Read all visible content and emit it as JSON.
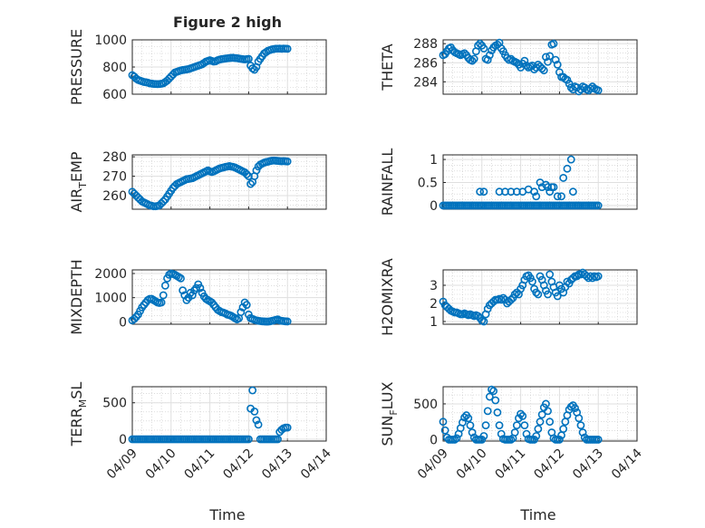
{
  "figure_title": "Figure 2 high",
  "colors": {
    "series": "#0072BD",
    "axes": "#262626",
    "grid": "#dfdfdf"
  },
  "x_axis": {
    "label": "Time",
    "ticks": [
      "04/09",
      "04/10",
      "04/11",
      "04/12",
      "04/13",
      "04/14"
    ],
    "range": [
      0,
      5
    ]
  },
  "chart_data": [
    {
      "type": "scatter",
      "position": "row1-left",
      "ylabel": "PRESSURE",
      "ylim": [
        600,
        1000
      ],
      "yticks": [
        600,
        800,
        1000
      ],
      "x": [
        0,
        0.05,
        0.1,
        0.15,
        0.2,
        0.25,
        0.3,
        0.35,
        0.4,
        0.45,
        0.5,
        0.55,
        0.6,
        0.65,
        0.7,
        0.75,
        0.8,
        0.85,
        0.9,
        0.95,
        1.0,
        1.05,
        1.1,
        1.15,
        1.2,
        1.25,
        1.3,
        1.35,
        1.4,
        1.45,
        1.5,
        1.55,
        1.6,
        1.65,
        1.7,
        1.75,
        1.8,
        1.85,
        1.9,
        1.95,
        2.0,
        2.05,
        2.1,
        2.15,
        2.2,
        2.25,
        2.3,
        2.35,
        2.4,
        2.45,
        2.5,
        2.55,
        2.6,
        2.65,
        2.7,
        2.75,
        2.8,
        2.85,
        2.9,
        2.95,
        3.0,
        3.05,
        3.1,
        3.15,
        3.2,
        3.25,
        3.3,
        3.35,
        3.4,
        3.45,
        3.5,
        3.55,
        3.6,
        3.65,
        3.7,
        3.75,
        3.8,
        3.85,
        3.9,
        3.95,
        4.0
      ],
      "y": [
        740,
        730,
        715,
        705,
        700,
        695,
        690,
        688,
        685,
        680,
        678,
        676,
        675,
        674,
        675,
        677,
        680,
        690,
        700,
        715,
        730,
        745,
        760,
        765,
        770,
        775,
        778,
        780,
        782,
        785,
        790,
        795,
        800,
        805,
        810,
        815,
        820,
        830,
        840,
        845,
        850,
        845,
        840,
        842,
        850,
        855,
        858,
        860,
        862,
        864,
        866,
        867,
        868,
        866,
        865,
        862,
        860,
        858,
        856,
        858,
        860,
        810,
        790,
        780,
        800,
        840,
        860,
        880,
        900,
        910,
        920,
        925,
        930,
        932,
        935,
        935,
        936,
        934,
        936,
        935,
        934
      ]
    },
    {
      "type": "scatter",
      "position": "row1-right",
      "ylabel": "THETA",
      "ylim": [
        282.7,
        288.4
      ],
      "yticks": [
        284,
        286,
        288
      ],
      "x": [
        0,
        0.05,
        0.1,
        0.15,
        0.2,
        0.25,
        0.3,
        0.35,
        0.4,
        0.45,
        0.5,
        0.55,
        0.6,
        0.65,
        0.7,
        0.75,
        0.8,
        0.85,
        0.9,
        0.95,
        1.0,
        1.05,
        1.1,
        1.15,
        1.2,
        1.25,
        1.3,
        1.35,
        1.4,
        1.45,
        1.5,
        1.55,
        1.6,
        1.65,
        1.7,
        1.75,
        1.8,
        1.85,
        1.9,
        1.95,
        2.0,
        2.05,
        2.1,
        2.15,
        2.2,
        2.25,
        2.3,
        2.35,
        2.4,
        2.45,
        2.5,
        2.55,
        2.6,
        2.65,
        2.7,
        2.75,
        2.8,
        2.85,
        2.9,
        2.95,
        3.0,
        3.05,
        3.1,
        3.15,
        3.2,
        3.25,
        3.3,
        3.35,
        3.4,
        3.45,
        3.5,
        3.55,
        3.6,
        3.65,
        3.7,
        3.75,
        3.8,
        3.85,
        3.9,
        3.95,
        4.0
      ],
      "y": [
        286.8,
        286.9,
        287.2,
        287.5,
        287.6,
        287.3,
        287.1,
        287.0,
        286.9,
        286.8,
        286.9,
        287.0,
        286.8,
        286.5,
        286.3,
        286.2,
        286.4,
        287.2,
        287.8,
        288.0,
        287.8,
        287.5,
        286.4,
        286.3,
        286.8,
        287.3,
        287.6,
        287.8,
        287.9,
        288.1,
        287.5,
        287.2,
        286.8,
        286.5,
        286.3,
        286.4,
        286.2,
        286.1,
        286.0,
        285.8,
        285.5,
        285.9,
        286.2,
        285.7,
        285.5,
        285.6,
        285.7,
        285.3,
        285.5,
        285.8,
        285.6,
        285.4,
        285.2,
        286.6,
        286.1,
        286.7,
        287.9,
        288.0,
        286.3,
        285.8,
        285.0,
        284.5,
        284.5,
        284.3,
        284.2,
        283.8,
        283.4,
        283.2,
        283.5,
        283.4,
        283.0,
        283.2,
        283.5,
        283.4,
        283.2,
        283.1,
        283.3,
        283.5,
        283.3,
        283.2,
        283.1
      ]
    },
    {
      "type": "scatter",
      "position": "row2-left",
      "ylabel": "AIR_TEMP",
      "ylim": [
        253,
        281
      ],
      "yticks": [
        260,
        270,
        280
      ],
      "x": [
        0,
        0.05,
        0.1,
        0.15,
        0.2,
        0.25,
        0.3,
        0.35,
        0.4,
        0.45,
        0.5,
        0.55,
        0.6,
        0.65,
        0.7,
        0.75,
        0.8,
        0.85,
        0.9,
        0.95,
        1.0,
        1.05,
        1.1,
        1.15,
        1.2,
        1.25,
        1.3,
        1.35,
        1.4,
        1.45,
        1.5,
        1.55,
        1.6,
        1.65,
        1.7,
        1.75,
        1.8,
        1.85,
        1.9,
        1.95,
        2.0,
        2.05,
        2.1,
        2.15,
        2.2,
        2.25,
        2.3,
        2.35,
        2.4,
        2.45,
        2.5,
        2.55,
        2.6,
        2.65,
        2.7,
        2.75,
        2.8,
        2.85,
        2.9,
        2.95,
        3.0,
        3.05,
        3.1,
        3.15,
        3.2,
        3.25,
        3.3,
        3.35,
        3.4,
        3.45,
        3.5,
        3.55,
        3.6,
        3.65,
        3.7,
        3.75,
        3.8,
        3.85,
        3.9,
        3.95,
        4.0
      ],
      "y": [
        262,
        261,
        260,
        259,
        258,
        257,
        256.5,
        256,
        255.5,
        255,
        254.8,
        254.5,
        254.5,
        254.7,
        255,
        256,
        257,
        258,
        259.5,
        261,
        262.5,
        264,
        265,
        266,
        266.5,
        267,
        267.5,
        268,
        268.5,
        268.6,
        268.8,
        269,
        269.5,
        270,
        270.5,
        271,
        271.5,
        272,
        272.5,
        273,
        272.5,
        272.2,
        272.5,
        273,
        273.5,
        274,
        274.3,
        274.5,
        274.8,
        275,
        275.2,
        275,
        274.8,
        274.5,
        274,
        273.5,
        273,
        272.5,
        272,
        271,
        270,
        266,
        267,
        270,
        273,
        275,
        276,
        276.5,
        277,
        277.3,
        277.5,
        277.8,
        278,
        278.1,
        278,
        277.9,
        277.8,
        277.7,
        277.8,
        277.7,
        277.6
      ]
    },
    {
      "type": "scatter",
      "position": "row2-right",
      "ylabel": "RAINFALL",
      "ylim": [
        -0.08,
        1.1
      ],
      "yticks": [
        0,
        0.5,
        1
      ],
      "x": [
        0,
        0.05,
        0.1,
        0.15,
        0.2,
        0.25,
        0.3,
        0.35,
        0.4,
        0.45,
        0.5,
        0.55,
        0.6,
        0.65,
        0.7,
        0.75,
        0.8,
        0.85,
        0.9,
        0.95,
        1.0,
        1.05,
        1.1,
        1.15,
        1.2,
        1.25,
        1.3,
        1.35,
        1.4,
        1.45,
        1.5,
        1.55,
        1.6,
        1.65,
        1.7,
        1.75,
        1.8,
        1.85,
        1.9,
        1.95,
        2.0,
        2.05,
        2.1,
        2.15,
        2.2,
        2.25,
        2.3,
        2.35,
        2.4,
        2.45,
        2.5,
        2.55,
        2.6,
        2.65,
        2.7,
        2.75,
        2.8,
        2.85,
        2.9,
        2.95,
        3.0,
        3.05,
        3.1,
        3.15,
        3.2,
        3.25,
        3.3,
        3.35,
        3.4,
        3.45,
        3.5,
        3.55,
        3.6,
        3.65,
        3.7,
        3.75,
        3.8,
        3.85,
        3.9,
        3.95,
        4.0,
        0.95,
        1.05,
        1.45,
        1.6,
        1.75,
        1.9,
        2.05,
        2.2,
        2.35,
        2.5,
        2.55,
        2.65,
        2.8,
        2.75,
        2.85,
        2.95,
        3.05,
        3.1,
        3.2,
        3.3,
        3.35,
        2.4,
        2.7
      ],
      "y": [
        0,
        0,
        0,
        0,
        0,
        0,
        0,
        0,
        0,
        0,
        0,
        0,
        0,
        0,
        0,
        0,
        0,
        0,
        0,
        0,
        0,
        0,
        0,
        0,
        0,
        0,
        0,
        0,
        0,
        0,
        0,
        0,
        0,
        0,
        0,
        0,
        0,
        0,
        0,
        0,
        0,
        0,
        0,
        0,
        0,
        0,
        0,
        0,
        0,
        0,
        0,
        0,
        0,
        0,
        0,
        0,
        0,
        0,
        0,
        0,
        0,
        0,
        0,
        0,
        0,
        0,
        0,
        0,
        0,
        0,
        0,
        0,
        0,
        0,
        0,
        0,
        0,
        0,
        0,
        0,
        0,
        0.3,
        0.3,
        0.3,
        0.3,
        0.3,
        0.3,
        0.3,
        0.35,
        0.3,
        0.5,
        0.4,
        0.45,
        0.4,
        0.3,
        0.4,
        0.2,
        0.2,
        0.6,
        0.8,
        1.0,
        0.3,
        0.2,
        0.4
      ]
    },
    {
      "type": "scatter",
      "position": "row3-left",
      "ylabel": "MIXDEPTH",
      "ylim": [
        -100,
        2150
      ],
      "yticks": [
        0,
        1000,
        2000
      ],
      "x": [
        0,
        0.05,
        0.1,
        0.15,
        0.2,
        0.25,
        0.3,
        0.35,
        0.4,
        0.45,
        0.5,
        0.55,
        0.6,
        0.65,
        0.7,
        0.75,
        0.8,
        0.85,
        0.9,
        0.95,
        1.0,
        1.05,
        1.1,
        1.15,
        1.2,
        1.25,
        1.3,
        1.35,
        1.4,
        1.45,
        1.5,
        1.55,
        1.6,
        1.65,
        1.7,
        1.75,
        1.8,
        1.85,
        1.9,
        1.95,
        2.0,
        2.05,
        2.1,
        2.15,
        2.2,
        2.25,
        2.3,
        2.35,
        2.4,
        2.45,
        2.5,
        2.55,
        2.6,
        2.65,
        2.7,
        2.75,
        2.8,
        2.85,
        2.9,
        2.95,
        3.0,
        3.05,
        3.1,
        3.15,
        3.2,
        3.25,
        3.3,
        3.35,
        3.4,
        3.45,
        3.5,
        3.55,
        3.6,
        3.65,
        3.7,
        3.75,
        3.8,
        3.85,
        3.9,
        3.95,
        4.0
      ],
      "y": [
        60,
        120,
        200,
        300,
        450,
        600,
        700,
        800,
        900,
        950,
        950,
        900,
        850,
        800,
        780,
        800,
        1100,
        1500,
        1800,
        1950,
        2000,
        1980,
        1950,
        1900,
        1850,
        1800,
        1300,
        1100,
        900,
        1000,
        1200,
        1100,
        1300,
        1400,
        1550,
        1400,
        1200,
        1050,
        950,
        900,
        850,
        800,
        700,
        600,
        500,
        450,
        400,
        380,
        350,
        300,
        280,
        250,
        200,
        150,
        100,
        150,
        400,
        600,
        800,
        700,
        300,
        150,
        120,
        80,
        60,
        40,
        30,
        20,
        15,
        10,
        10,
        20,
        40,
        60,
        80,
        100,
        60,
        40,
        30,
        20,
        15
      ]
    },
    {
      "type": "scatter",
      "position": "row3-right",
      "ylabel": "H2OMIXRA",
      "ylim": [
        0.85,
        3.85
      ],
      "yticks": [
        1,
        2,
        3
      ],
      "x": [
        0,
        0.05,
        0.1,
        0.15,
        0.2,
        0.25,
        0.3,
        0.35,
        0.4,
        0.45,
        0.5,
        0.55,
        0.6,
        0.65,
        0.7,
        0.75,
        0.8,
        0.85,
        0.9,
        0.95,
        1.0,
        1.05,
        1.1,
        1.15,
        1.2,
        1.25,
        1.3,
        1.35,
        1.4,
        1.45,
        1.5,
        1.55,
        1.6,
        1.65,
        1.7,
        1.75,
        1.8,
        1.85,
        1.9,
        1.95,
        2.0,
        2.05,
        2.1,
        2.15,
        2.2,
        2.25,
        2.3,
        2.35,
        2.4,
        2.45,
        2.5,
        2.55,
        2.6,
        2.65,
        2.7,
        2.75,
        2.8,
        2.85,
        2.9,
        2.95,
        3.0,
        3.05,
        3.1,
        3.15,
        3.2,
        3.25,
        3.3,
        3.35,
        3.4,
        3.45,
        3.5,
        3.55,
        3.6,
        3.65,
        3.7,
        3.75,
        3.8,
        3.85,
        3.9,
        3.95,
        4.0
      ],
      "y": [
        2.1,
        1.9,
        1.8,
        1.7,
        1.6,
        1.55,
        1.5,
        1.5,
        1.45,
        1.4,
        1.4,
        1.45,
        1.4,
        1.35,
        1.4,
        1.35,
        1.3,
        1.35,
        1.3,
        1.2,
        1.05,
        1.0,
        1.4,
        1.7,
        1.9,
        2.0,
        2.1,
        2.2,
        2.2,
        2.25,
        2.2,
        2.3,
        2.2,
        2.0,
        2.1,
        2.2,
        2.3,
        2.5,
        2.6,
        2.5,
        2.8,
        3.0,
        3.3,
        3.5,
        3.55,
        3.4,
        3.2,
        2.8,
        2.6,
        2.5,
        3.5,
        3.3,
        3.0,
        2.7,
        2.5,
        3.6,
        3.2,
        2.9,
        2.6,
        2.4,
        3.0,
        2.8,
        2.6,
        2.9,
        3.2,
        3.1,
        3.3,
        3.4,
        3.5,
        3.5,
        3.6,
        3.6,
        3.7,
        3.6,
        3.5,
        3.4,
        3.5,
        3.4,
        3.5,
        3.45,
        3.5
      ]
    },
    {
      "type": "scatter",
      "position": "row4-left",
      "ylabel": "TERR_MSL",
      "ylim": [
        -25,
        720
      ],
      "yticks": [
        0,
        500
      ],
      "x": [
        0,
        0.05,
        0.1,
        0.15,
        0.2,
        0.25,
        0.3,
        0.35,
        0.4,
        0.45,
        0.5,
        0.55,
        0.6,
        0.65,
        0.7,
        0.75,
        0.8,
        0.85,
        0.9,
        0.95,
        1.0,
        1.05,
        1.1,
        1.15,
        1.2,
        1.25,
        1.3,
        1.35,
        1.4,
        1.45,
        1.5,
        1.55,
        1.6,
        1.65,
        1.7,
        1.75,
        1.8,
        1.85,
        1.9,
        1.95,
        2.0,
        2.05,
        2.1,
        2.15,
        2.2,
        2.25,
        2.3,
        2.35,
        2.4,
        2.45,
        2.5,
        2.55,
        2.6,
        2.65,
        2.7,
        2.75,
        2.8,
        2.85,
        2.9,
        2.95,
        3.0,
        3.05,
        3.1,
        3.15,
        3.2,
        3.25,
        3.3,
        3.35,
        3.4,
        3.45,
        3.5,
        3.55,
        3.6,
        3.65,
        3.7,
        3.75,
        3.8,
        3.85,
        3.9,
        3.95,
        4.0
      ],
      "y": [
        0,
        0,
        0,
        0,
        0,
        0,
        0,
        0,
        0,
        0,
        0,
        0,
        0,
        0,
        0,
        0,
        0,
        0,
        0,
        0,
        0,
        0,
        0,
        0,
        0,
        0,
        0,
        0,
        0,
        0,
        0,
        0,
        0,
        0,
        0,
        0,
        0,
        0,
        0,
        0,
        0,
        0,
        0,
        0,
        0,
        0,
        0,
        0,
        0,
        0,
        0,
        0,
        0,
        0,
        0,
        0,
        0,
        0,
        0,
        0,
        0,
        420,
        670,
        380,
        260,
        200,
        0,
        0,
        0,
        0,
        0,
        0,
        0,
        0,
        0,
        0,
        100,
        130,
        150,
        160,
        160
      ]
    },
    {
      "type": "scatter",
      "position": "row4-right",
      "ylabel": "SUN_FLUX",
      "ylim": [
        -20,
        740
      ],
      "yticks": [
        0,
        500
      ],
      "x": [
        0,
        0.05,
        0.1,
        0.15,
        0.2,
        0.25,
        0.3,
        0.35,
        0.4,
        0.45,
        0.5,
        0.55,
        0.6,
        0.65,
        0.7,
        0.75,
        0.8,
        0.85,
        0.9,
        0.95,
        1.0,
        1.05,
        1.1,
        1.15,
        1.2,
        1.25,
        1.3,
        1.35,
        1.4,
        1.45,
        1.5,
        1.55,
        1.6,
        1.65,
        1.7,
        1.75,
        1.8,
        1.85,
        1.9,
        1.95,
        2.0,
        2.05,
        2.1,
        2.15,
        2.2,
        2.25,
        2.3,
        2.35,
        2.4,
        2.45,
        2.5,
        2.55,
        2.6,
        2.65,
        2.7,
        2.75,
        2.8,
        2.85,
        2.9,
        2.95,
        3.0,
        3.05,
        3.1,
        3.15,
        3.2,
        3.25,
        3.3,
        3.35,
        3.4,
        3.45,
        3.5,
        3.55,
        3.6,
        3.65,
        3.7,
        3.75,
        3.8,
        3.85,
        3.9,
        3.95,
        4.0
      ],
      "y": [
        250,
        130,
        30,
        0,
        0,
        0,
        0,
        20,
        80,
        160,
        240,
        310,
        340,
        300,
        200,
        100,
        30,
        0,
        0,
        0,
        0,
        50,
        200,
        400,
        600,
        700,
        680,
        550,
        380,
        200,
        80,
        10,
        0,
        0,
        0,
        0,
        20,
        100,
        200,
        300,
        360,
        330,
        200,
        80,
        10,
        0,
        0,
        0,
        50,
        150,
        250,
        350,
        450,
        500,
        400,
        250,
        100,
        20,
        0,
        0,
        0,
        60,
        150,
        250,
        340,
        420,
        460,
        480,
        440,
        380,
        300,
        200,
        100,
        30,
        0,
        0,
        0,
        0,
        0,
        0,
        0
      ]
    }
  ]
}
